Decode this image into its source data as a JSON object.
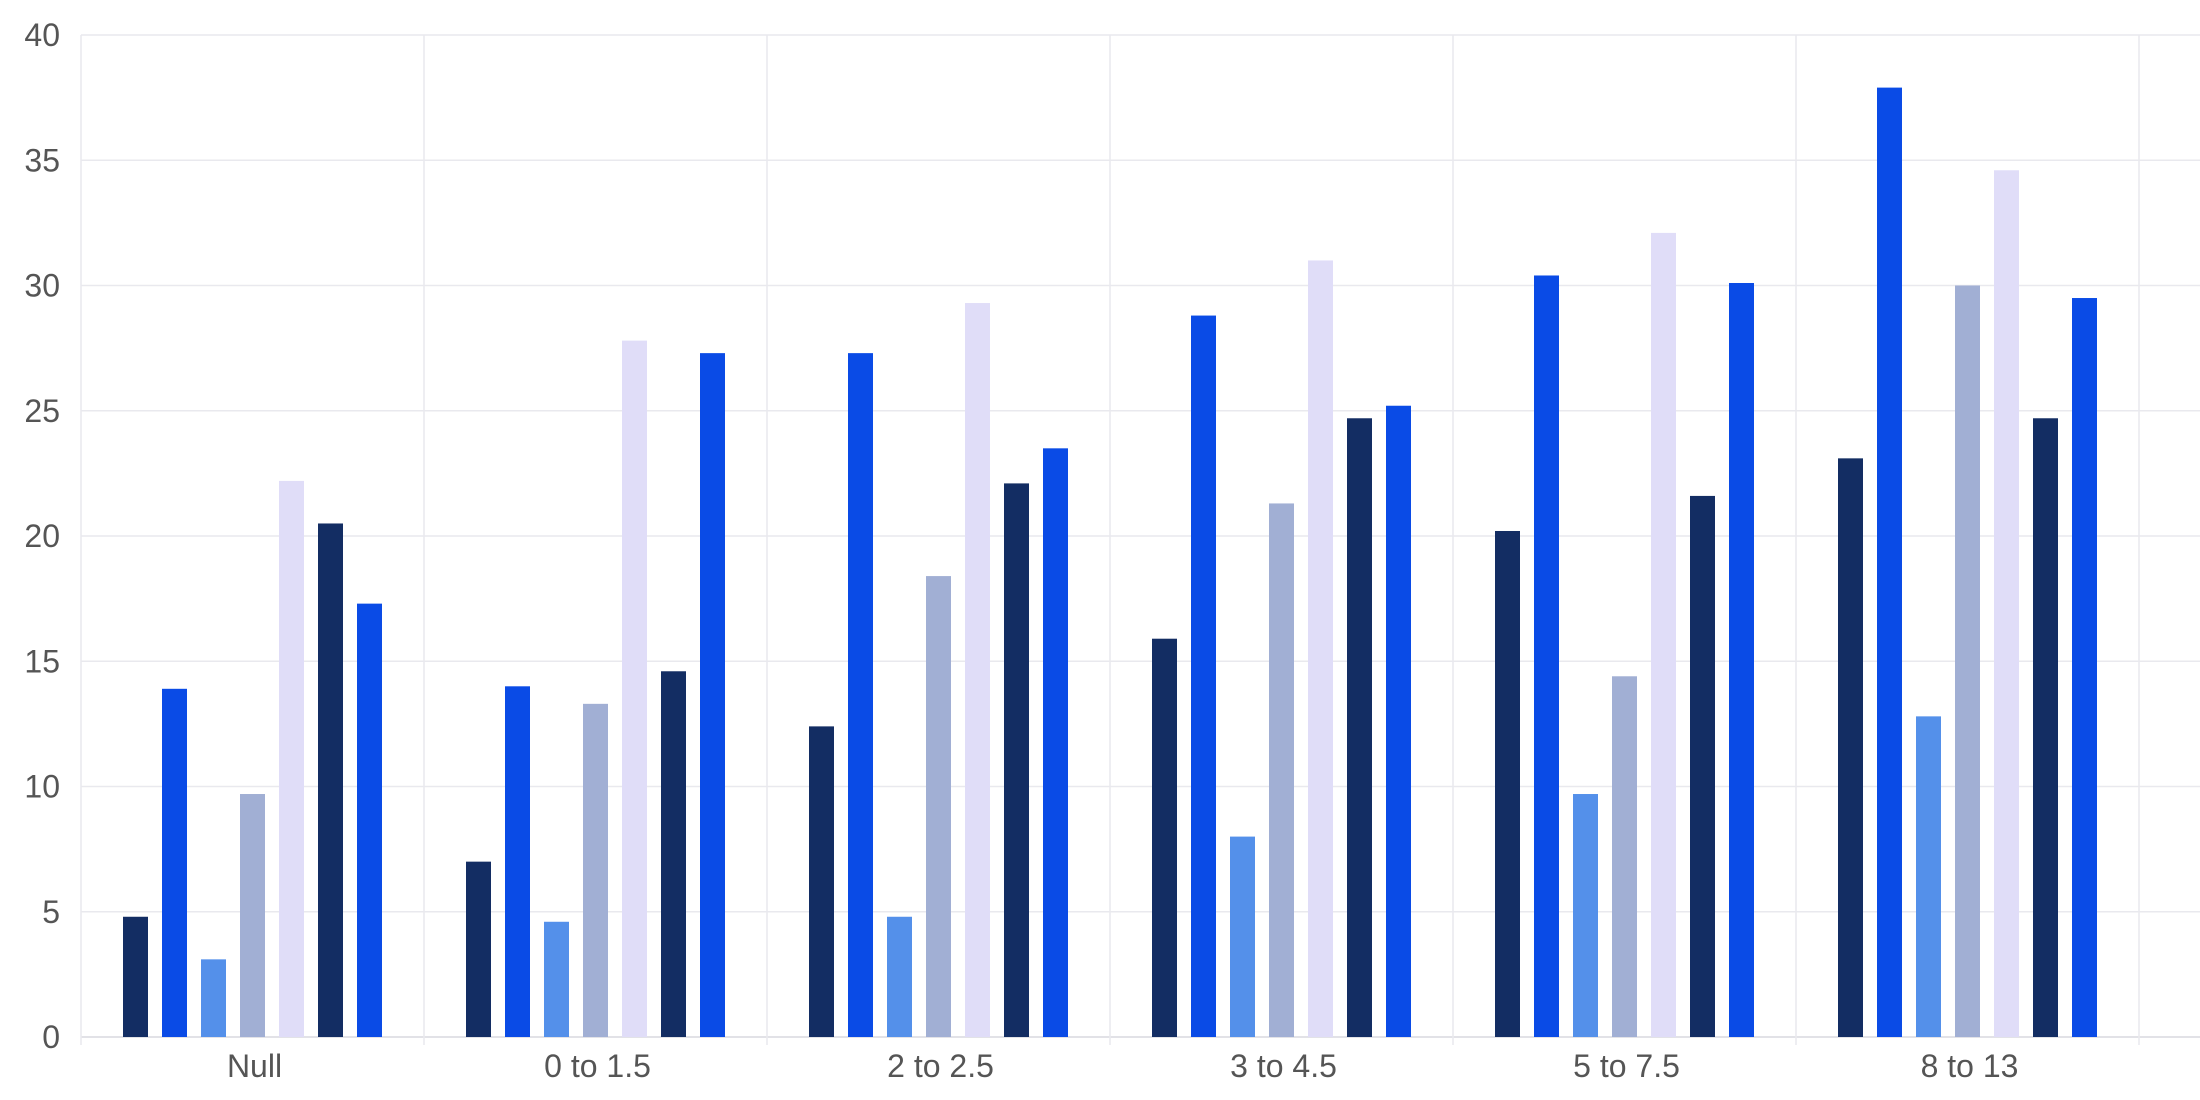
{
  "chart_data": {
    "type": "bar",
    "title": "",
    "xlabel": "",
    "ylabel": "",
    "ylim": [
      0,
      40
    ],
    "yticks": [
      0,
      5,
      10,
      15,
      20,
      25,
      30,
      35,
      40
    ],
    "grid": true,
    "legend": "none",
    "categories": [
      "Null",
      "0 to 1.5",
      "2 to 2.5",
      "3 to 4.5",
      "5 to 7.5",
      "8 to 13"
    ],
    "series": [
      {
        "color": "#132d63",
        "values": [
          4.8,
          7.0,
          12.4,
          15.9,
          20.2,
          23.1
        ]
      },
      {
        "color": "#0a4be6",
        "values": [
          13.9,
          14.0,
          27.3,
          28.8,
          30.4,
          37.9
        ]
      },
      {
        "color": "#5490ea",
        "values": [
          3.1,
          4.6,
          4.8,
          8.0,
          9.7,
          12.8
        ]
      },
      {
        "color": "#a1afd4",
        "values": [
          9.7,
          13.3,
          18.4,
          21.3,
          14.4,
          30.0
        ]
      },
      {
        "color": "#e0ddf8",
        "values": [
          22.2,
          27.8,
          29.3,
          31.0,
          32.1,
          34.6
        ]
      },
      {
        "color": "#132d63",
        "values": [
          20.5,
          14.6,
          22.1,
          24.7,
          21.6,
          24.7
        ]
      },
      {
        "color": "#0a4be6",
        "values": [
          17.3,
          27.3,
          23.5,
          25.2,
          30.1,
          29.5
        ]
      }
    ]
  }
}
